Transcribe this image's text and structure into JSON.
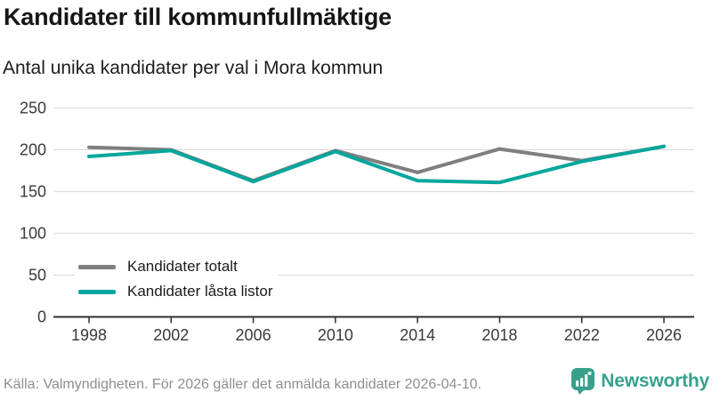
{
  "header": {
    "title": "Kandidater till kommunfullmäktige",
    "subtitle": "Antal unika kandidater per val i Mora kommun"
  },
  "chart_data": {
    "type": "line",
    "x": [
      "1998",
      "2002",
      "2006",
      "2010",
      "2014",
      "2018",
      "2022",
      "2026"
    ],
    "series": [
      {
        "name": "Kandidater totalt",
        "color": "#7f7f7f",
        "values": [
          203,
          200,
          163,
          199,
          173,
          201,
          187,
          204
        ]
      },
      {
        "name": "Kandidater låsta listor",
        "color": "#00a69c",
        "values": [
          192,
          199,
          162,
          198,
          163,
          161,
          186,
          204
        ]
      }
    ],
    "yticks": [
      "0",
      "50",
      "100",
      "150",
      "200",
      "250"
    ],
    "ylim": [
      0,
      250
    ],
    "grid": true,
    "legend_position": "inside bottom-left",
    "gridline_color": "#dddddd",
    "axis_color": "#2f2f2f",
    "tick_label_color": "#3a3a3a"
  },
  "footer": {
    "source": "Källa: Valmyndigheten. För 2026 gäller det anmälda kandidater 2026-04-10.",
    "brand": "Newsworthy",
    "brand_color": "#38a18c",
    "brand_icon": "speech-bubble-bar-chart"
  }
}
